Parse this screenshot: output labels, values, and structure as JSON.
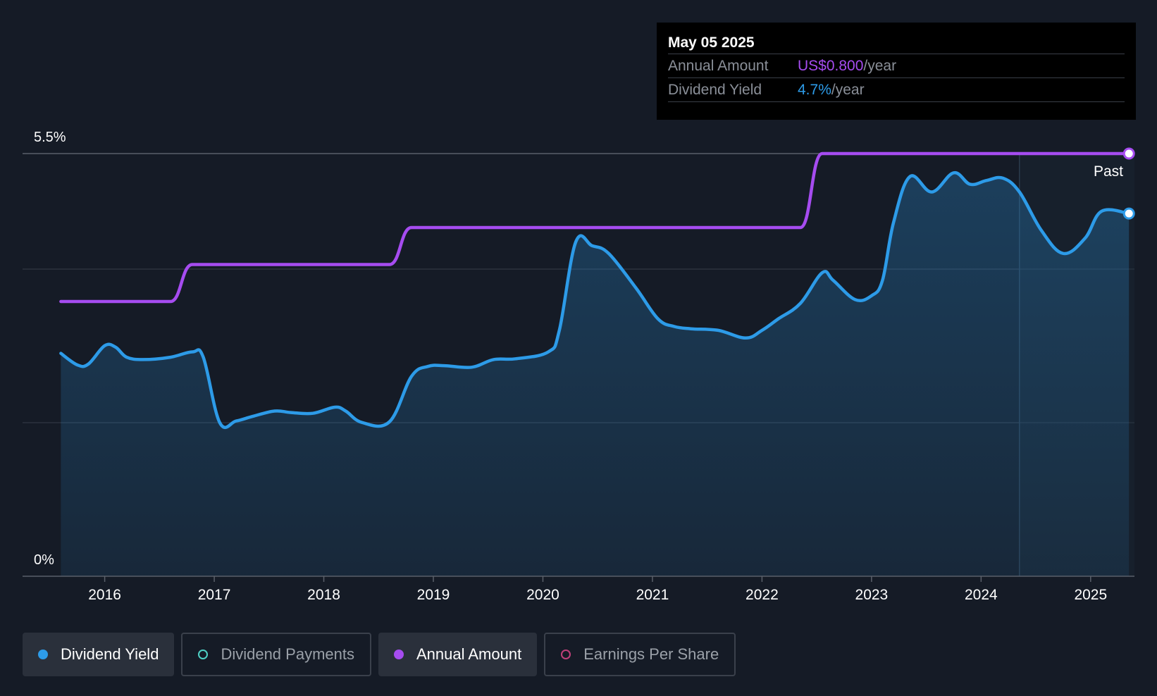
{
  "tooltip": {
    "date": "May 05 2025",
    "annual_amount_label": "Annual Amount",
    "annual_amount_value": "US$0.800",
    "annual_amount_unit": "/year",
    "dividend_yield_label": "Dividend Yield",
    "dividend_yield_value": "4.7%",
    "dividend_yield_unit": "/year"
  },
  "past_label": "Past",
  "legend": [
    {
      "label": "Dividend Yield",
      "color": "#2d9be8",
      "filled": true,
      "active": true
    },
    {
      "label": "Dividend Payments",
      "color": "#4fd1c5",
      "filled": false,
      "active": false
    },
    {
      "label": "Annual Amount",
      "color": "#a64cf0",
      "filled": true,
      "active": true
    },
    {
      "label": "Earnings Per Share",
      "color": "#c0407a",
      "filled": false,
      "active": false
    }
  ],
  "colors": {
    "background": "#151b26",
    "yield_line": "#2d9be8",
    "annual_line": "#a64cf0",
    "grid": "#2c333e",
    "axis_text": "#ffffff"
  },
  "chart_data": {
    "type": "line",
    "x_range": [
      2015.25,
      2025.4
    ],
    "y_left_ticks": [
      "5.5%",
      "0%"
    ],
    "y_left_range": [
      0,
      5.5
    ],
    "x_tick_labels": [
      "2016",
      "2017",
      "2018",
      "2019",
      "2020",
      "2021",
      "2022",
      "2023",
      "2024",
      "2025"
    ],
    "x_tick_values": [
      2016,
      2017,
      2018,
      2019,
      2020,
      2021,
      2022,
      2023,
      2024,
      2025
    ],
    "grid": true,
    "past_marker_x": 2024.35,
    "series": [
      {
        "name": "Dividend Yield",
        "unit": "%",
        "x": [
          2015.6,
          2015.75,
          2015.85,
          2016.0,
          2016.1,
          2016.2,
          2016.35,
          2016.6,
          2016.8,
          2016.9,
          2017.05,
          2017.2,
          2017.35,
          2017.55,
          2017.7,
          2017.9,
          2018.1,
          2018.2,
          2018.35,
          2018.6,
          2018.8,
          2018.95,
          2019.1,
          2019.35,
          2019.55,
          2019.75,
          2020.05,
          2020.15,
          2020.3,
          2020.45,
          2020.6,
          2020.85,
          2021.05,
          2021.2,
          2021.35,
          2021.6,
          2021.85,
          2022.0,
          2022.15,
          2022.35,
          2022.55,
          2022.65,
          2022.85,
          2023.0,
          2023.1,
          2023.2,
          2023.35,
          2023.55,
          2023.75,
          2023.9,
          2024.05,
          2024.2,
          2024.35,
          2024.55,
          2024.75,
          2024.95,
          2025.1,
          2025.35
        ],
        "values": [
          2.9,
          2.75,
          2.76,
          3.0,
          2.98,
          2.85,
          2.82,
          2.85,
          2.92,
          2.85,
          2.0,
          2.02,
          2.08,
          2.15,
          2.13,
          2.12,
          2.2,
          2.15,
          2.0,
          2.01,
          2.6,
          2.73,
          2.74,
          2.72,
          2.82,
          2.83,
          2.92,
          3.2,
          4.35,
          4.3,
          4.2,
          3.75,
          3.35,
          3.25,
          3.22,
          3.2,
          3.1,
          3.2,
          3.35,
          3.55,
          3.95,
          3.85,
          3.6,
          3.65,
          3.85,
          4.6,
          5.2,
          5.0,
          5.25,
          5.1,
          5.15,
          5.18,
          5.0,
          4.5,
          4.2,
          4.4,
          4.75,
          4.72
        ]
      },
      {
        "name": "Annual Amount",
        "unit": "US$/year",
        "x": [
          2015.6,
          2016.6,
          2016.8,
          2018.6,
          2018.8,
          2022.35,
          2022.55,
          2025.35
        ],
        "values": [
          0.6,
          0.6,
          0.65,
          0.65,
          0.7,
          0.7,
          0.8,
          0.8
        ]
      }
    ]
  }
}
